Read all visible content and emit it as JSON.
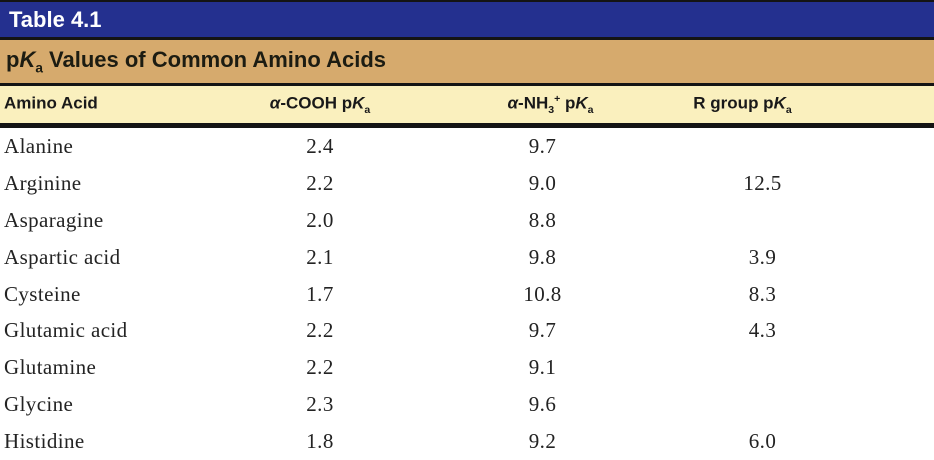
{
  "colors": {
    "title_bar_bg": "#24308f",
    "title_text": "#ffffff",
    "subtitle_bar_bg": "#d6aa6d",
    "header_row_bg": "#faf0be",
    "rule_color": "#141414",
    "body_text": "#232323"
  },
  "title_bar": {
    "label": "Table 4.1"
  },
  "subtitle_bar": {
    "pre": "p",
    "k": "K",
    "sub": "a",
    "post": " Values of Common Amino Acids"
  },
  "table": {
    "headers": [
      {
        "alpha": "",
        "pre": "Amino Acid",
        "sub1": "",
        "sup1": "",
        "mid": "",
        "k": "",
        "sub": ""
      },
      {
        "alpha": "α",
        "pre": "-COOH",
        "sub1": "",
        "sup1": "",
        "mid": " p",
        "k": "K",
        "sub": "a"
      },
      {
        "alpha": "α",
        "pre": "-NH",
        "sub1": "3",
        "sup1": "+",
        "mid": " p",
        "k": "K",
        "sub": "a"
      },
      {
        "alpha": "",
        "pre": "R group",
        "sub1": "",
        "sup1": "",
        "mid": " p",
        "k": "K",
        "sub": "a"
      }
    ],
    "rows": [
      {
        "name": "Alanine",
        "cooh": "2.4",
        "nh3": "9.7",
        "r": ""
      },
      {
        "name": "Arginine",
        "cooh": "2.2",
        "nh3": "9.0",
        "r": "12.5"
      },
      {
        "name": "Asparagine",
        "cooh": "2.0",
        "nh3": "8.8",
        "r": ""
      },
      {
        "name": "Aspartic acid",
        "cooh": "2.1",
        "nh3": "9.8",
        "r": "3.9"
      },
      {
        "name": "Cysteine",
        "cooh": "1.7",
        "nh3": "10.8",
        "r": "8.3"
      },
      {
        "name": "Glutamic acid",
        "cooh": "2.2",
        "nh3": "9.7",
        "r": "4.3"
      },
      {
        "name": "Glutamine",
        "cooh": "2.2",
        "nh3": "9.1",
        "r": ""
      },
      {
        "name": "Glycine",
        "cooh": "2.3",
        "nh3": "9.6",
        "r": ""
      },
      {
        "name": "Histidine",
        "cooh": "1.8",
        "nh3": "9.2",
        "r": "6.0"
      }
    ]
  }
}
